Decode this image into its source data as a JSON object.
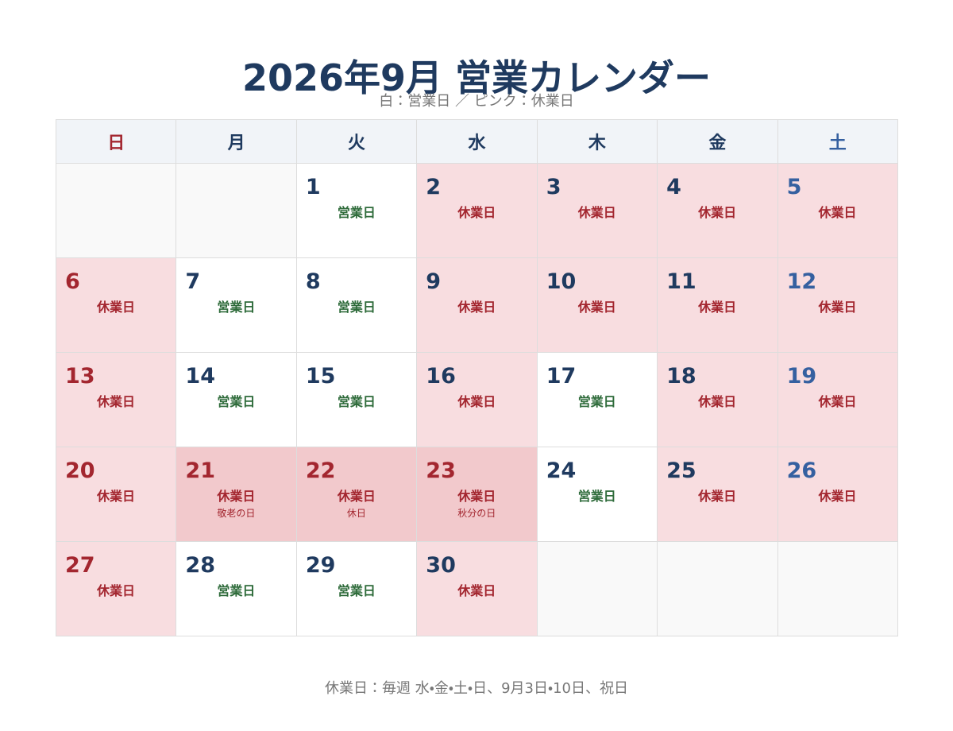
{
  "header": {
    "title": "2026年9月 営業カレンダー",
    "subtitle": "白：営業日 ／ ピンク：休業日"
  },
  "weekdays": [
    "日",
    "月",
    "火",
    "水",
    "木",
    "金",
    "土"
  ],
  "weeks": [
    [
      null,
      null,
      {
        "day": 1,
        "status": "営業日",
        "closed": false
      },
      {
        "day": 2,
        "status": "休業日",
        "closed": true
      },
      {
        "day": 3,
        "status": "休業日",
        "closed": true
      },
      {
        "day": 4,
        "status": "休業日",
        "closed": true
      },
      {
        "day": 5,
        "status": "休業日",
        "closed": true
      }
    ],
    [
      {
        "day": 6,
        "status": "休業日",
        "closed": true
      },
      {
        "day": 7,
        "status": "営業日",
        "closed": false
      },
      {
        "day": 8,
        "status": "営業日",
        "closed": false
      },
      {
        "day": 9,
        "status": "休業日",
        "closed": true
      },
      {
        "day": 10,
        "status": "休業日",
        "closed": true
      },
      {
        "day": 11,
        "status": "休業日",
        "closed": true
      },
      {
        "day": 12,
        "status": "休業日",
        "closed": true
      }
    ],
    [
      {
        "day": 13,
        "status": "休業日",
        "closed": true
      },
      {
        "day": 14,
        "status": "営業日",
        "closed": false
      },
      {
        "day": 15,
        "status": "営業日",
        "closed": false
      },
      {
        "day": 16,
        "status": "休業日",
        "closed": true
      },
      {
        "day": 17,
        "status": "営業日",
        "closed": false
      },
      {
        "day": 18,
        "status": "休業日",
        "closed": true
      },
      {
        "day": 19,
        "status": "休業日",
        "closed": true
      }
    ],
    [
      {
        "day": 20,
        "status": "休業日",
        "closed": true
      },
      {
        "day": 21,
        "status": "休業日",
        "closed": true,
        "holiday": "敬老の日"
      },
      {
        "day": 22,
        "status": "休業日",
        "closed": true,
        "holiday": "休日"
      },
      {
        "day": 23,
        "status": "休業日",
        "closed": true,
        "holiday": "秋分の日"
      },
      {
        "day": 24,
        "status": "営業日",
        "closed": false
      },
      {
        "day": 25,
        "status": "休業日",
        "closed": true
      },
      {
        "day": 26,
        "status": "休業日",
        "closed": true
      }
    ],
    [
      {
        "day": 27,
        "status": "休業日",
        "closed": true
      },
      {
        "day": 28,
        "status": "営業日",
        "closed": false
      },
      {
        "day": 29,
        "status": "営業日",
        "closed": false
      },
      {
        "day": 30,
        "status": "休業日",
        "closed": true
      },
      null,
      null,
      null
    ]
  ],
  "footer": "休業日：毎週 水・金・土・日、9月3日・10日、祝日"
}
